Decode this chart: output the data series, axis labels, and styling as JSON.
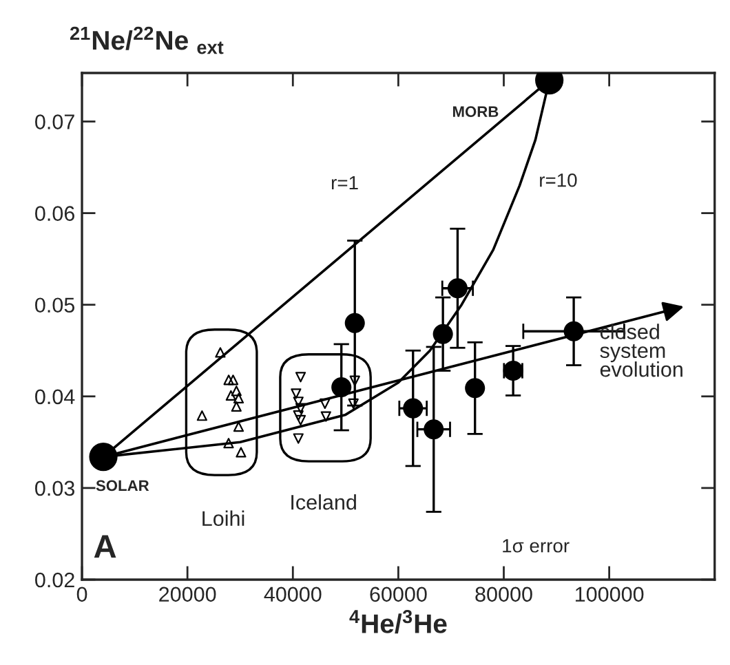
{
  "chart_data": {
    "type": "scatter",
    "xlabel": "$^{4}$He/$^{3}$He",
    "ylabel": "$^{21}$Ne/$^{22}$Ne $_{ext}$",
    "xlim": [
      0,
      120000
    ],
    "ylim": [
      0.02,
      0.0753
    ],
    "xticks": [
      0,
      20000,
      40000,
      60000,
      80000,
      100000
    ],
    "yticks": [
      0.02,
      0.03,
      0.04,
      0.05,
      0.06,
      0.07
    ],
    "series": [
      {
        "type": "line",
        "color": "#000000",
        "x": [
          4050,
          88640
        ],
        "values": [
          0.0334,
          0.0745
        ]
      },
      {
        "type": "line",
        "color": "#000000",
        "x": [
          4050,
          30000,
          50000,
          60000,
          66000,
          72000,
          78000,
          83000,
          86000,
          88640
        ],
        "values": [
          0.0334,
          0.035,
          0.038,
          0.0415,
          0.045,
          0.05,
          0.056,
          0.063,
          0.068,
          0.0745
        ]
      },
      {
        "color": "#000000",
        "marker": "triangle",
        "x": [
          27830,
          28660,
          29290,
          28250,
          29710,
          29290,
          22770,
          29710,
          27810,
          30160,
          26240
        ],
        "values": [
          0.0418,
          0.0418,
          0.0406,
          0.0401,
          0.0398,
          0.0389,
          0.0379,
          0.0367,
          0.0349,
          0.0339,
          0.0448
        ]
      },
      {
        "color": "#000000",
        "marker": "triangle_down",
        "x": [
          41470,
          40600,
          41040,
          41470,
          41040,
          41470,
          41040,
          46080,
          46270,
          51750,
          51490
        ],
        "values": [
          0.0421,
          0.0403,
          0.0394,
          0.0387,
          0.0379,
          0.0374,
          0.0354,
          0.0392,
          0.0378,
          0.0417,
          0.0392
        ]
      },
      {
        "color": "#000000",
        "marker": "circle",
        "x": [
          49200,
          51750,
          62790,
          66710,
          68460,
          71240,
          74540,
          81780,
          93270
        ],
        "values": [
          0.041,
          0.048,
          0.0387,
          0.0364,
          0.0468,
          0.0518,
          0.0409,
          0.0428,
          0.0471
        ],
        "errors": [
          0.0047,
          0.009,
          0.0063,
          0.009,
          0.004,
          0.0065,
          0.005,
          0.0027,
          0.0037
        ],
        "xerrors": [
          null,
          null,
          2600,
          3100,
          null,
          2900,
          null,
          1740,
          9570
        ]
      },
      {
        "color": "#000000",
        "marker": "circle",
        "x": [
          4050,
          88640
        ],
        "values": [
          0.0334,
          0.0745
        ]
      }
    ],
    "annotations": [
      "MORB",
      {
        "text": "SOLAR",
        "x": 4050,
        "y": 0.0334
      },
      "Loihi",
      "Iceland",
      "r=1",
      {
        "text": "r=10",
        "x": 83000,
        "y": 0.063
      },
      "closed system evolution",
      "1σ error",
      "A"
    ]
  }
}
